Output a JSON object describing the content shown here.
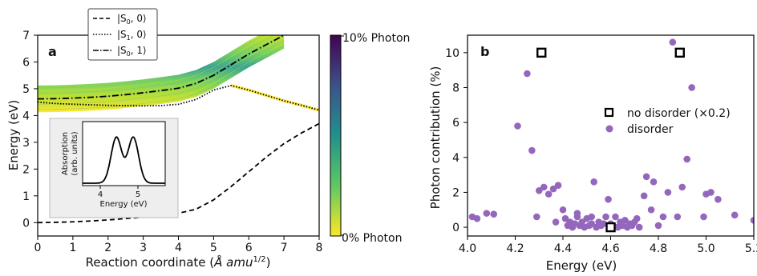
{
  "colors": {
    "viridis_top": "#440154",
    "viridis_mid": "#21908d",
    "viridis_bottom": "#fde725",
    "scatter": "#9467bd",
    "inset_bg": "#eeeeee"
  },
  "chart_data": [
    {
      "type": "line",
      "panel_label": "a",
      "xlabel": "Reaction coordinate (",
      "xlabel_italic": "Å amu",
      "xlabel_sup": "1/2",
      "xlabel_close": ")",
      "ylabel": "Energy (eV)",
      "xlim": [
        0,
        8
      ],
      "ylim": [
        -0.5,
        7
      ],
      "xticks": [
        "0",
        "1",
        "2",
        "3",
        "4",
        "5",
        "6",
        "7",
        "8"
      ],
      "yticks": [
        "0",
        "1",
        "2",
        "3",
        "4",
        "5",
        "6",
        "7"
      ],
      "series": [
        {
          "name": "|S0, 0⟩",
          "label_main": "|S",
          "label_sub": "0",
          "label_tail": ", 0⟩",
          "style": "dashed",
          "x": [
            0,
            0.5,
            1,
            1.5,
            2,
            2.5,
            3,
            3.5,
            4,
            4.5,
            5,
            5.5,
            6,
            6.5,
            7,
            7.5,
            8
          ],
          "y": [
            0,
            0.01,
            0.03,
            0.06,
            0.1,
            0.15,
            0.2,
            0.27,
            0.35,
            0.5,
            0.85,
            1.35,
            1.9,
            2.45,
            2.95,
            3.35,
            3.7
          ]
        },
        {
          "name": "|S1, 0⟩",
          "label_main": "|S",
          "label_sub": "1",
          "label_tail": ", 0⟩",
          "style": "dotted",
          "x": [
            0,
            0.5,
            1,
            1.5,
            2,
            2.5,
            3,
            3.5,
            4,
            4.5,
            5,
            5.5,
            6,
            6.5,
            7,
            7.5,
            8
          ],
          "y": [
            4.5,
            4.45,
            4.42,
            4.4,
            4.38,
            4.37,
            4.36,
            4.37,
            4.42,
            4.6,
            4.95,
            5.12,
            4.95,
            4.75,
            4.55,
            4.38,
            4.2
          ]
        },
        {
          "name": "|S0, 1⟩",
          "label_main": "|S",
          "label_sub": "0",
          "label_tail": ", 1⟩",
          "style": "dashdot",
          "x": [
            0,
            0.5,
            1,
            1.5,
            2,
            2.5,
            3,
            3.5,
            4,
            4.5,
            5,
            5.5,
            6,
            6.5,
            7
          ],
          "y": [
            4.62,
            4.63,
            4.65,
            4.68,
            4.72,
            4.78,
            4.85,
            4.93,
            5.02,
            5.2,
            5.5,
            5.9,
            6.3,
            6.65,
            7.0
          ]
        }
      ],
      "colorbar": {
        "top_label": "10% Photon",
        "bottom_label": "0% Photon"
      },
      "inset": {
        "xlabel": "Energy (eV)",
        "ylabel_line1": "Absorption",
        "ylabel_line2": "(arb. units)",
        "xticks": [
          "4",
          "5"
        ],
        "peaks_ev": [
          4.45,
          4.9
        ]
      }
    },
    {
      "type": "scatter",
      "panel_label": "b",
      "xlabel": "Energy (eV)",
      "ylabel": "Photon contribution (%)",
      "xlim": [
        4.0,
        5.2
      ],
      "ylim": [
        -0.5,
        11
      ],
      "xticks": [
        "4.0",
        "4.2",
        "4.4",
        "4.6",
        "4.8",
        "5.0",
        "5.2"
      ],
      "yticks": [
        "0",
        "2",
        "4",
        "6",
        "8",
        "10"
      ],
      "legend": [
        "no disorder (×0.2)",
        "disorder"
      ],
      "series": [
        {
          "name": "no disorder (×0.2)",
          "marker": "square",
          "points": [
            [
              4.31,
              10.0
            ],
            [
              4.89,
              10.0
            ],
            [
              4.6,
              0.0
            ]
          ]
        },
        {
          "name": "disorder",
          "marker": "circle",
          "points": [
            [
              4.02,
              0.6
            ],
            [
              4.04,
              0.5
            ],
            [
              4.08,
              0.8
            ],
            [
              4.11,
              0.75
            ],
            [
              4.21,
              5.8
            ],
            [
              4.25,
              8.8
            ],
            [
              4.27,
              4.4
            ],
            [
              4.29,
              0.6
            ],
            [
              4.3,
              2.1
            ],
            [
              4.32,
              2.3
            ],
            [
              4.34,
              1.9
            ],
            [
              4.36,
              2.2
            ],
            [
              4.38,
              2.4
            ],
            [
              4.4,
              1.0
            ],
            [
              4.41,
              0.5
            ],
            [
              4.42,
              0.1
            ],
            [
              4.43,
              0.3
            ],
            [
              4.44,
              0.0
            ],
            [
              4.45,
              0.2
            ],
            [
              4.46,
              0.8
            ],
            [
              4.47,
              0.1
            ],
            [
              4.48,
              0.3
            ],
            [
              4.49,
              0.0
            ],
            [
              4.5,
              0.5
            ],
            [
              4.51,
              0.1
            ],
            [
              4.52,
              0.2
            ],
            [
              4.53,
              2.6
            ],
            [
              4.54,
              0.0
            ],
            [
              4.55,
              0.3
            ],
            [
              4.56,
              0.1
            ],
            [
              4.57,
              0.2
            ],
            [
              4.58,
              0.6
            ],
            [
              4.59,
              1.6
            ],
            [
              4.6,
              0.2
            ],
            [
              4.61,
              0.1
            ],
            [
              4.62,
              0.6
            ],
            [
              4.63,
              0.0
            ],
            [
              4.64,
              0.3
            ],
            [
              4.65,
              0.1
            ],
            [
              4.66,
              0.4
            ],
            [
              4.67,
              0.0
            ],
            [
              4.68,
              0.2
            ],
            [
              4.69,
              0.1
            ],
            [
              4.7,
              0.3
            ],
            [
              4.72,
              0.0
            ],
            [
              4.74,
              1.8
            ],
            [
              4.75,
              2.9
            ],
            [
              4.77,
              1.0
            ],
            [
              4.78,
              2.6
            ],
            [
              4.8,
              0.1
            ],
            [
              4.82,
              0.6
            ],
            [
              4.84,
              2.0
            ],
            [
              4.86,
              10.6
            ],
            [
              4.88,
              0.6
            ],
            [
              4.9,
              2.3
            ],
            [
              4.92,
              3.9
            ],
            [
              4.94,
              8.0
            ],
            [
              4.99,
              0.6
            ],
            [
              5.0,
              1.9
            ],
            [
              5.02,
              2.0
            ],
            [
              5.05,
              1.6
            ],
            [
              5.12,
              0.7
            ],
            [
              5.2,
              0.4
            ],
            [
              4.37,
              0.3
            ],
            [
              4.46,
              0.6
            ],
            [
              4.52,
              0.6
            ],
            [
              4.71,
              0.5
            ]
          ]
        }
      ]
    }
  ]
}
